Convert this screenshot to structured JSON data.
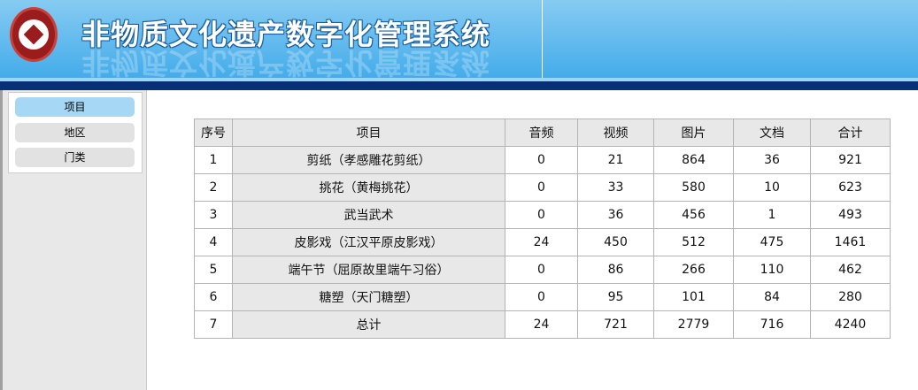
{
  "header": {
    "title": "非物质文化遗产数字化管理系统"
  },
  "sidebar": {
    "items": [
      {
        "label": "项目",
        "active": true
      },
      {
        "label": "地区",
        "active": false
      },
      {
        "label": "门类",
        "active": false
      }
    ]
  },
  "table": {
    "columns": [
      "序号",
      "项目",
      "音频",
      "视频",
      "图片",
      "文档",
      "合计"
    ],
    "rows": [
      [
        "1",
        "剪纸（孝感雕花剪纸）",
        "0",
        "21",
        "864",
        "36",
        "921"
      ],
      [
        "2",
        "挑花（黄梅挑花）",
        "0",
        "33",
        "580",
        "10",
        "623"
      ],
      [
        "3",
        "武当武术",
        "0",
        "36",
        "456",
        "1",
        "493"
      ],
      [
        "4",
        "皮影戏（江汉平原皮影戏）",
        "24",
        "450",
        "512",
        "475",
        "1461"
      ],
      [
        "5",
        "端午节（屈原故里端午习俗）",
        "0",
        "86",
        "266",
        "110",
        "462"
      ],
      [
        "6",
        "糖塑（天门糖塑）",
        "0",
        "95",
        "101",
        "84",
        "280"
      ],
      [
        "7",
        "总计",
        "24",
        "721",
        "2779",
        "716",
        "4240"
      ]
    ]
  }
}
